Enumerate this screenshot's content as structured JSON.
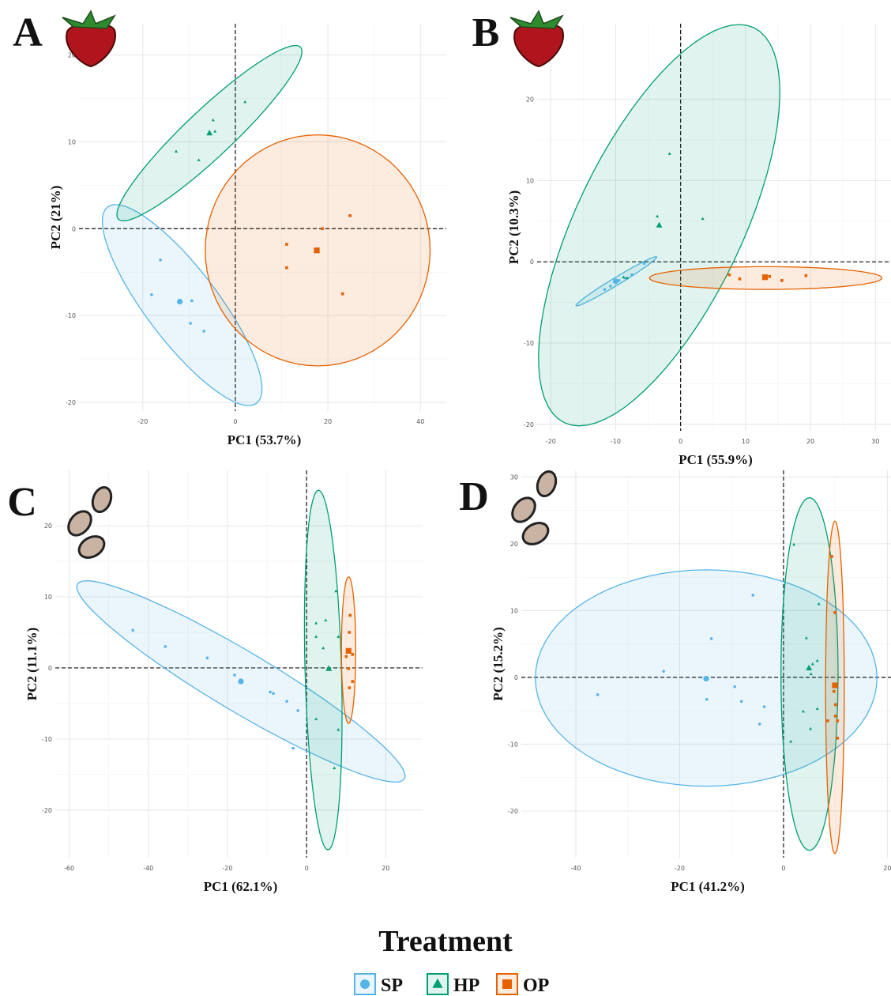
{
  "legend": {
    "title": "Treatment",
    "entries": [
      {
        "label": "SP",
        "color": "#56b4e9",
        "marker": "circle"
      },
      {
        "label": "HP",
        "color": "#009e73",
        "marker": "triangle"
      },
      {
        "label": "OP",
        "color": "#e66100",
        "marker": "square"
      }
    ]
  },
  "chart_data": [
    {
      "type": "scatter",
      "panel": "A",
      "xlabel": "PC1 (53.7%)",
      "ylabel": "PC2 (21%)",
      "grid": true,
      "zero_lines": true,
      "xlim": [
        -33.8,
        45.6
      ],
      "ylim": [
        -21,
        23.6
      ],
      "xticks": [
        -20,
        0,
        20,
        40
      ],
      "yticks": [
        -20,
        -10,
        0,
        10,
        20
      ],
      "series": [
        {
          "x": [
            -16.2,
            -18.1,
            -9.4,
            -9.7,
            -6.8
          ],
          "y": [
            -3.6,
            -7.6,
            -8.3,
            -10.9,
            -11.8
          ],
          "centroid": [
            -12,
            -8.4
          ],
          "ellipse": {
            "center": [
              -11.5,
              -8.8
            ],
            "u": [
              16.1,
              -11.3
            ],
            "v": [
              6.2,
              2.5
            ]
          }
        },
        {
          "x": [
            2.1,
            -4.8,
            -4.4,
            -12.8,
            -7.9
          ],
          "y": [
            14.6,
            12.5,
            11.2,
            8.9,
            7.9
          ],
          "centroid": [
            -5.6,
            11
          ],
          "ellipse": {
            "center": [
              -5.6,
              11
            ],
            "u": [
              19.7,
              9.9
            ],
            "v": [
              3.5,
              -2.0
            ]
          }
        },
        {
          "x": [
            24.8,
            18.8,
            11.1,
            11.1,
            23.2
          ],
          "y": [
            1.5,
            0,
            -1.8,
            -4.5,
            -7.5
          ],
          "centroid": [
            17.6,
            -2.5
          ],
          "ellipse": {
            "center": [
              17.8,
              -2.5
            ],
            "u": [
              24.3,
              0
            ],
            "v": [
              0,
              13.3
            ]
          }
        }
      ]
    },
    {
      "type": "scatter",
      "panel": "B",
      "xlabel": "PC1 (55.9%)",
      "ylabel": "PC2 (10.3%)",
      "grid": true,
      "zero_lines": true,
      "xlim": [
        -22.1,
        32.4
      ],
      "ylim": [
        -20.8,
        29.3
      ],
      "xticks": [
        -20,
        -10,
        0,
        10,
        20,
        30
      ],
      "yticks": [
        -20,
        -10,
        0,
        10,
        20
      ],
      "series": [
        {
          "x": [
            -11.7,
            -10.8,
            -9.5,
            -8.5,
            -7.5,
            -5.6
          ],
          "y": [
            -3.4,
            -3.0,
            -2.3,
            -2.0,
            -1.6,
            -0.2
          ],
          "centroid": [
            -10.0,
            -2.4
          ],
          "ellipse": {
            "center": [
              -9.9,
              -2.4
            ],
            "u": [
              6.2,
              3.0
            ],
            "v": [
              0.3,
              -0.4
            ]
          }
        },
        {
          "x": [
            -1.7,
            -3.6,
            3.4,
            -8.8,
            -8.2
          ],
          "y": [
            13.3,
            5.6,
            5.3,
            -1.9,
            -2.0
          ],
          "centroid": [
            -3.3,
            4.5
          ],
          "ellipse": {
            "center": [
              -3.3,
              4.5
            ],
            "u": [
              14.6,
              24.3
            ],
            "v": [
              11.5,
              -4.4
            ]
          }
        },
        {
          "x": [
            7.5,
            9.1,
            13.7,
            15.6,
            19.3
          ],
          "y": [
            -1.6,
            -2.1,
            -1.8,
            -2.3,
            -1.7
          ],
          "centroid": [
            13,
            -1.9
          ],
          "ellipse": {
            "center": [
              13.1,
              -2.0
            ],
            "u": [
              17.9,
              0
            ],
            "v": [
              0,
              1.4
            ]
          }
        }
      ]
    },
    {
      "type": "scatter",
      "panel": "C",
      "xlabel": "PC1 (62.1%)",
      "ylabel": "PC2 (11.1%)",
      "grid": true,
      "zero_lines": true,
      "xlim": [
        -63.5,
        29.3
      ],
      "ylim": [
        -26.7,
        27.8
      ],
      "xticks": [
        -60,
        -40,
        -20,
        0,
        20
      ],
      "yticks": [
        -20,
        -10,
        0,
        10,
        20
      ],
      "series": [
        {
          "x": [
            -43.9,
            -35.7,
            -25.1,
            -18.2,
            -9.2,
            -8.4,
            -5.0,
            -2.2,
            -3.4
          ],
          "y": [
            5.3,
            3.0,
            1.4,
            -1.0,
            -3.4,
            -3.6,
            -4.7,
            -6.0,
            -11.3
          ],
          "centroid": [
            -16.6,
            -1.9
          ],
          "ellipse": {
            "center": [
              -16.6,
              -1.9
            ],
            "u": [
              41.3,
              -13.7
            ],
            "v": [
              3.9,
              3.6
            ]
          }
        },
        {
          "x": [
            7.4,
            2.4,
            4.8,
            2.4,
            4.2,
            8.0,
            2.4,
            8.0,
            7.0
          ],
          "y": [
            10.8,
            6.3,
            6.7,
            4.4,
            2.8,
            4.4,
            -7.2,
            -8.7,
            -14.1
          ],
          "centroid": [
            5.6,
            -0.1
          ],
          "ellipse": {
            "center": [
              4.2,
              -0.3
            ],
            "u": [
              -1.2,
              25.3
            ],
            "v": [
              4.6,
              0
            ]
          }
        },
        {
          "x": [
            11.0,
            10.8,
            11.6,
            10.6,
            11.6,
            10.8,
            10.0
          ],
          "y": [
            7.4,
            5.0,
            1.9,
            -0.1,
            -1.9,
            -2.8,
            1.6
          ],
          "centroid": [
            10.6,
            2.4
          ],
          "ellipse": {
            "center": [
              10.6,
              2.5
            ],
            "u": [
              0,
              10.3
            ],
            "v": [
              1.8,
              0
            ]
          }
        }
      ]
    },
    {
      "type": "scatter",
      "panel": "D",
      "xlabel": "PC1 (41.2%)",
      "ylabel": "PC2 (15.2%)",
      "grid": true,
      "zero_lines": true,
      "xlim": [
        -50.5,
        20.7
      ],
      "ylim": [
        -27,
        31
      ],
      "xticks": [
        -40,
        -20,
        0,
        20
      ],
      "yticks": [
        -20,
        -10,
        0,
        10,
        20,
        30
      ],
      "series": [
        {
          "x": [
            -35.8,
            -23.1,
            -13.9,
            -5.9,
            -14.8,
            -9.4,
            -8.1,
            -3.7,
            -4.6
          ],
          "y": [
            -2.6,
            0.9,
            5.8,
            12.3,
            -3.3,
            -1.4,
            -3.6,
            -4.4,
            -7.0
          ],
          "centroid": [
            -14.9,
            -0.2
          ],
          "ellipse": {
            "center": [
              -14.9,
              -0.1
            ],
            "u": [
              32.9,
              0
            ],
            "v": [
              0,
              16.2
            ]
          }
        },
        {
          "x": [
            2.0,
            6.8,
            4.4,
            5.6,
            6.5,
            5.3,
            3.8,
            6.5,
            5.2,
            1.4
          ],
          "y": [
            19.9,
            11.0,
            5.9,
            2.0,
            2.5,
            0.5,
            -5.1,
            -4.7,
            -7.7,
            -9.6
          ],
          "centroid": [
            4.9,
            1.4
          ],
          "ellipse": {
            "center": [
              5.0,
              0.5
            ],
            "u": [
              0,
              26.4
            ],
            "v": [
              5.5,
              0
            ]
          }
        },
        {
          "x": [
            9.3,
            9.9,
            9.7,
            10.0,
            10.0,
            8.5,
            10.4,
            10.4
          ],
          "y": [
            18.1,
            9.7,
            -2.1,
            -4.1,
            -5.8,
            -6.5,
            -6.5,
            -9.1
          ],
          "centroid": [
            9.9,
            -1.2
          ],
          "ellipse": {
            "center": [
              9.9,
              -1.5
            ],
            "u": [
              0,
              24.9
            ],
            "v": [
              1.8,
              0
            ]
          }
        }
      ]
    }
  ]
}
